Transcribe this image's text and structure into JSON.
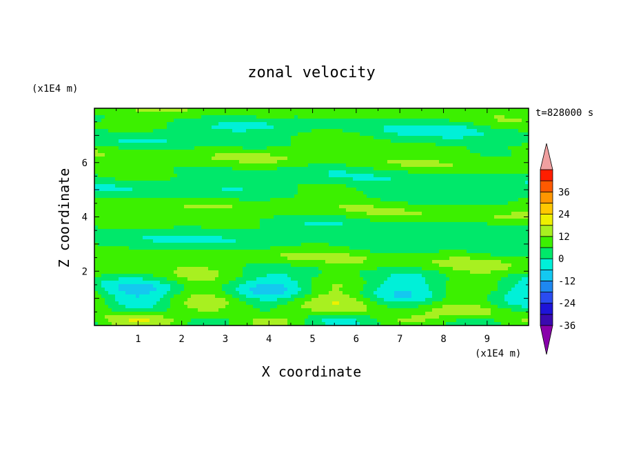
{
  "chart_data": {
    "type": "heatmap",
    "title": "zonal velocity",
    "xlabel": "X coordinate",
    "ylabel": "Z coordinate",
    "x_unit": "(x1E4 m)",
    "y_unit": "(x1E4 m)",
    "time_label": "t=828000 s",
    "xlim": [
      0,
      9.95
    ],
    "ylim": [
      0,
      8
    ],
    "x_ticks": [
      "1",
      "2",
      "3",
      "4",
      "5",
      "6",
      "7",
      "8",
      "9"
    ],
    "y_ticks": [
      "2",
      "4",
      "6"
    ],
    "colorbar": {
      "levels": [
        -42,
        -36,
        -30,
        -24,
        -18,
        -12,
        -6,
        0,
        6,
        12,
        18,
        24,
        30,
        36,
        42
      ],
      "tick_labels": [
        "36",
        "24",
        "12",
        "0",
        "-12",
        "-24",
        "-36"
      ],
      "colors": [
        "#8800aa",
        "#3a0ab0",
        "#1e14d8",
        "#2a4cf0",
        "#1e88f0",
        "#14c8f0",
        "#00f0d8",
        "#00e86a",
        "#3cf000",
        "#a8f020",
        "#eef000",
        "#ffc800",
        "#ff9600",
        "#ff5a00",
        "#ff1e00",
        "#f0a0a0"
      ]
    },
    "grid": false,
    "legend": "right colorbar",
    "field_description": "mostly near-zero values (-6 to 6) in horizontal bands above z=2; alternating cells near bottom with positive (~6 to 12) at x≈2.5, 5.7, 8.8 and negative (~-6) at x≈1, 4, 7"
  }
}
